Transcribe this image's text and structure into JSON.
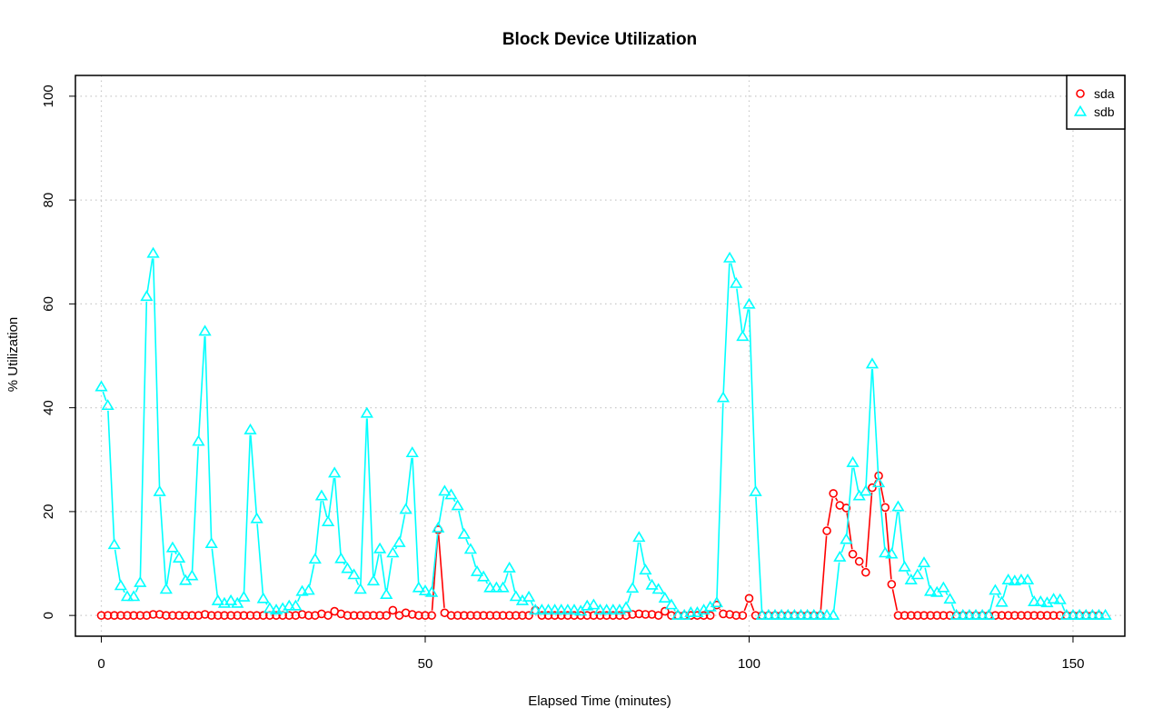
{
  "chart_data": {
    "type": "line",
    "title": "Block Device Utilization",
    "xlabel": "Elapsed Time (minutes)",
    "ylabel": "% Utilization",
    "xlim": [
      -4,
      158
    ],
    "ylim": [
      -4,
      104
    ],
    "xticks": [
      0,
      50,
      100,
      150
    ],
    "yticks": [
      0,
      20,
      40,
      60,
      80,
      100
    ],
    "grid": true,
    "legend_position": "top-right",
    "series": [
      {
        "name": "sda",
        "color": "#ff0000",
        "marker": "circle",
        "values": [
          0,
          0,
          0,
          0,
          0,
          0,
          0,
          0,
          0.2,
          0.2,
          0,
          0,
          0,
          0,
          0,
          0,
          0.2,
          0,
          0,
          0,
          0,
          0,
          0,
          0,
          0,
          0,
          0,
          0,
          0,
          0,
          0,
          0.2,
          0,
          0,
          0.3,
          0,
          0.8,
          0.3,
          0,
          0,
          0,
          0,
          0,
          0,
          0,
          1,
          0,
          0.5,
          0.2,
          0,
          0,
          0,
          16.5,
          0.5,
          0,
          0,
          0,
          0,
          0,
          0,
          0,
          0,
          0,
          0,
          0,
          0,
          0,
          1,
          0,
          0,
          0,
          0,
          0,
          0,
          0,
          0,
          0,
          0,
          0,
          0,
          0,
          0,
          0.2,
          0.3,
          0.2,
          0.2,
          0,
          0.8,
          0,
          0,
          0,
          0,
          0,
          0,
          0,
          2,
          0.3,
          0.2,
          0,
          0,
          3.3,
          0,
          0,
          0,
          0,
          0,
          0,
          0,
          0,
          0,
          0,
          0,
          16.3,
          23.5,
          21.2,
          20.7,
          11.8,
          10.4,
          8.3,
          24.6,
          26.9,
          20.8,
          6,
          0,
          0,
          0,
          0,
          0,
          0,
          0,
          0,
          0,
          0,
          0,
          0,
          0,
          0,
          0,
          0,
          0,
          0,
          0,
          0,
          0,
          0,
          0,
          0,
          0,
          0,
          0,
          0,
          0,
          0,
          0,
          0
        ]
      },
      {
        "name": "sdb",
        "color": "#00ffff",
        "marker": "triangle",
        "values": [
          44,
          40.4,
          13.6,
          5.7,
          3.6,
          3.6,
          6.3,
          61.4,
          69.7,
          23.8,
          5,
          13,
          11,
          6.7,
          7.6,
          33.5,
          54.7,
          13.8,
          2.8,
          2.3,
          2.8,
          2.3,
          3.5,
          35.7,
          18.6,
          3.2,
          1.3,
          1,
          1.3,
          1.8,
          1.8,
          4.6,
          4.8,
          10.8,
          23,
          18,
          27.4,
          10.9,
          9,
          7.8,
          5,
          38.9,
          6.6,
          12.8,
          4,
          12,
          14,
          20.4,
          31.3,
          5.3,
          4.7,
          4.4,
          16.8,
          23.9,
          23.2,
          21.1,
          15.6,
          12.7,
          8.4,
          7.4,
          5.3,
          5.3,
          5.3,
          9.1,
          3.6,
          2.8,
          3.5,
          1,
          1,
          1,
          1,
          1,
          1,
          1,
          0.8,
          1.8,
          2,
          1,
          1,
          1,
          1,
          1.5,
          5.2,
          15,
          8.7,
          5.8,
          5,
          3.3,
          2,
          0,
          0,
          0.5,
          0.5,
          1,
          1.6,
          2.4,
          41.9,
          68.8,
          63.9,
          53.7,
          59.9,
          23.8,
          0,
          0,
          0,
          0,
          0,
          0,
          0,
          0,
          0,
          0,
          0,
          0,
          11.2,
          14.6,
          29.4,
          23,
          23.9,
          48.4,
          25.5,
          12,
          11.8,
          20.9,
          9.3,
          6.8,
          7.8,
          10.1,
          4.6,
          4.4,
          5.3,
          3.1,
          0,
          0,
          0,
          0,
          0,
          0,
          4.8,
          2.5,
          6.8,
          6.6,
          6.8,
          6.8,
          2.6,
          2.6,
          2.4,
          3.1,
          3,
          0,
          0,
          0,
          0,
          0,
          0,
          0
        ]
      }
    ]
  }
}
